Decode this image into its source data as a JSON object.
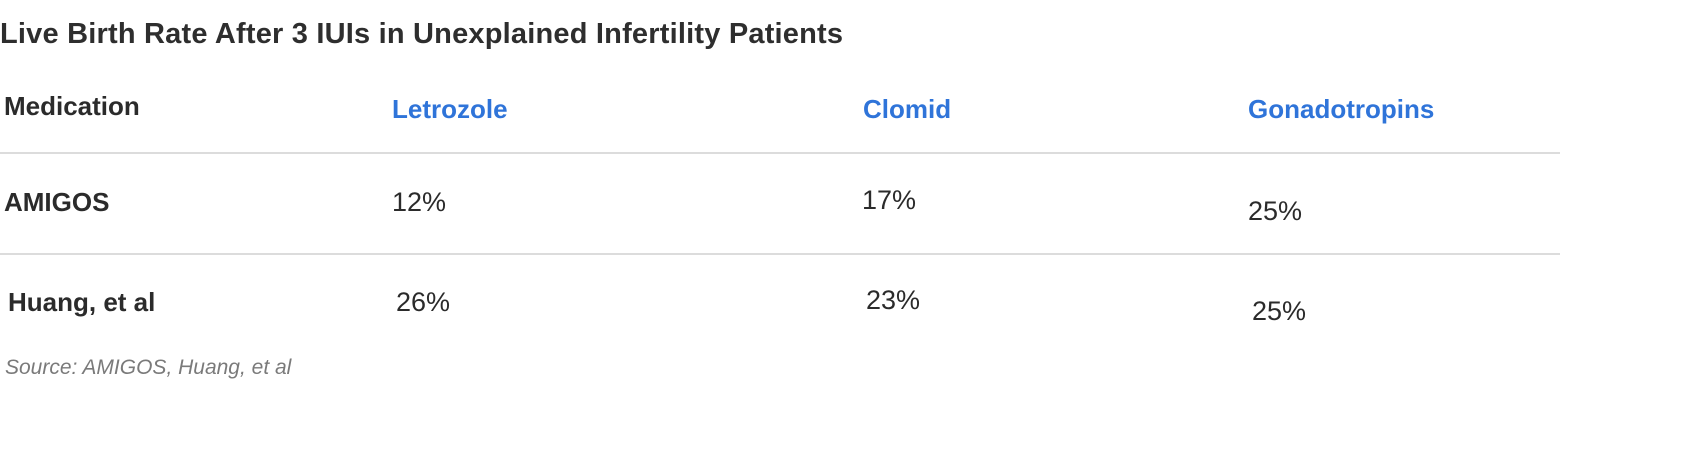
{
  "title": "Live Birth Rate After 3 IUIs in Unexplained Infertility Patients",
  "table": {
    "header": {
      "row_label": "Medication",
      "columns": [
        "Letrozole",
        "Clomid",
        "Gonadotropins"
      ]
    },
    "rows": [
      {
        "label": "AMIGOS",
        "values": [
          "12%",
          "17%",
          "25%"
        ]
      },
      {
        "label": "Huang, et al",
        "values": [
          "26%",
          "23%",
          "25%"
        ]
      }
    ]
  },
  "source": "Source: AMIGOS, Huang, et al",
  "colors": {
    "column_header": "#2f74d9",
    "text": "#2b2b2b",
    "divider": "#dcdcdc",
    "source": "#7a7a7a"
  }
}
